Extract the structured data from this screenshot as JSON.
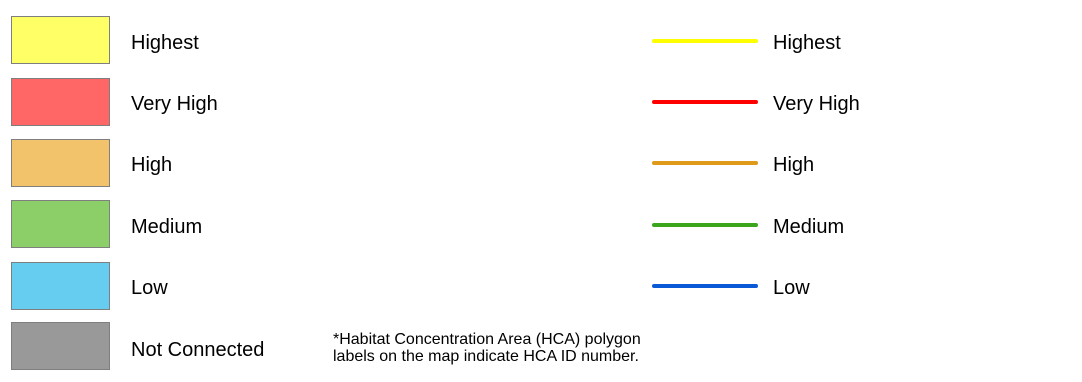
{
  "legend": {
    "polygons": [
      {
        "label": "Highest",
        "color": "#ffff66"
      },
      {
        "label": "Very High",
        "color": "#ff6666"
      },
      {
        "label": "High",
        "color": "#f2c36b"
      },
      {
        "label": "Medium",
        "color": "#8ccf69"
      },
      {
        "label": "Low",
        "color": "#66ccf0"
      },
      {
        "label": "Not Connected",
        "color": "#999999"
      }
    ],
    "lines": [
      {
        "label": "Highest",
        "color": "#ffff00"
      },
      {
        "label": "Very High",
        "color": "#ff0000"
      },
      {
        "label": "High",
        "color": "#e09a1a"
      },
      {
        "label": "Medium",
        "color": "#3ca51e"
      },
      {
        "label": "Low",
        "color": "#0a5ad7"
      }
    ]
  },
  "note": {
    "line1": "*Habitat Concentration Area (HCA) polygon",
    "line2": "labels on the map indicate HCA ID number."
  }
}
